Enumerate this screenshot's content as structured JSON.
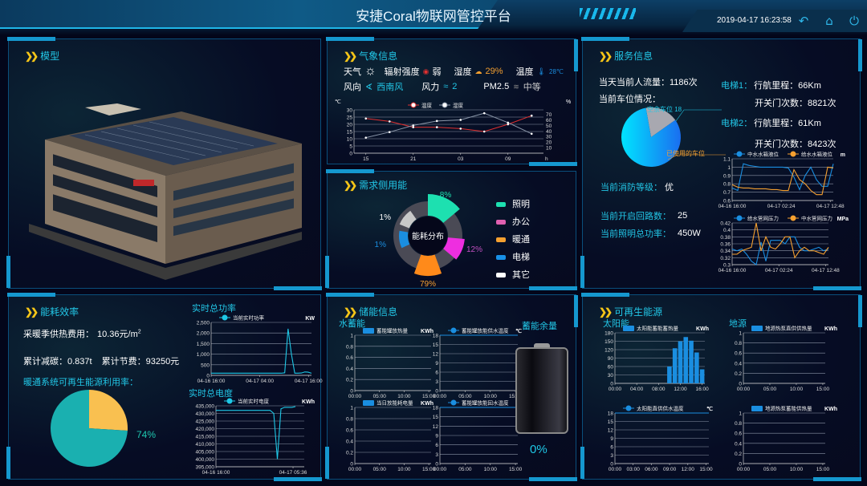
{
  "header": {
    "title": "安捷Coral物联网管控平台",
    "datetime": "2019-04-17 16:23:58",
    "icons": [
      "back-icon",
      "home-icon",
      "power-icon"
    ]
  },
  "model": {
    "title": "模型"
  },
  "weather": {
    "title": "气象信息",
    "weather_label": "天气",
    "weather_icon": "sun-icon",
    "radiation_label": "辐射强度",
    "radiation_value": "弱",
    "humidity_label": "湿度",
    "humidity_value": "29%",
    "temperature_label": "温度",
    "temperature_value": "28℃",
    "wind_dir_label": "风向",
    "wind_dir_value": "西南风",
    "wind_force_label": "风力",
    "wind_force_value": "2",
    "pm25_label": "PM2.5",
    "pm25_value": "中等"
  },
  "demand": {
    "title": "需求侧用能",
    "center_label": "能耗分布",
    "segments": [
      {
        "label": "照明",
        "percent": "8%",
        "color": "#1de0b0"
      },
      {
        "label": "办公",
        "percent": "12%",
        "color": "#ee2ee0"
      },
      {
        "label": "暖通",
        "percent": "79%",
        "color": "#ff8a1a"
      },
      {
        "label": "电梯",
        "percent": "1%",
        "color": "#1a8ee0"
      },
      {
        "label": "其它",
        "percent": "1%",
        "color": "#c8c8c8"
      }
    ],
    "legend_colors": [
      "#1de0b0",
      "#e060b0",
      "#f5a030",
      "#1890e8",
      "#ffffff"
    ]
  },
  "service": {
    "title": "服务信息",
    "traffic": "当天当前人流量：1186次",
    "parking_label": "当前车位情况：",
    "parking": {
      "free_label": "空余车位 18",
      "used_label": "已使用的车位",
      "free_fraction": 0.18
    },
    "elevator1_label": "电梯1：",
    "elevator1_mileage": "行航里程：66Km",
    "elevator1_doors": "开关门次数：8821次",
    "elevator2_label": "电梯2：",
    "elevator2_mileage": "行航里程：61Km",
    "elevator2_doors": "开关门次数：8423次",
    "fire_label": "当前消防等级：",
    "fire_value": "优",
    "circuits_label": "当前开启回路数：",
    "circuits_value": "25",
    "lighting_label": "当前照明总功率：",
    "lighting_value": "450W"
  },
  "efficiency": {
    "title": "能耗效率",
    "heating_cost": "采暖季供热费用：",
    "heating_cost_value": "10.36元/m",
    "heating_cost_sup": "2",
    "carbon": "累计减碳：0.837t",
    "saving": "累计节费：93250元",
    "renewable_label": "暖通系统可再生能源利用率：",
    "renewable_percent": "74%",
    "renewable_fraction": 0.74,
    "power_title": "实时总功率",
    "energy_title": "实时总电度"
  },
  "storage": {
    "title": "储能信息",
    "water_label": "水蓄能",
    "remaining_label": "蓄能余量",
    "remaining_value": "0%",
    "remaining_fraction": 0
  },
  "renewable": {
    "title": "可再生能源",
    "solar_label": "太阳能",
    "ground_label": "地源"
  },
  "chart_data": [
    {
      "id": "weather",
      "type": "line",
      "unit_left": "℃",
      "unit_right": "%",
      "xunit": "h",
      "ymin": 0,
      "ymax": 30,
      "yticks": [
        0,
        5,
        10,
        15,
        20,
        25,
        30
      ],
      "ymin2": 0,
      "ymax2": 78,
      "yticks2": [
        10,
        20,
        30,
        40,
        50,
        60,
        70
      ],
      "xticks": [
        "15",
        "21",
        "03",
        "09"
      ],
      "series": [
        {
          "name": "温度",
          "color": "#e03030",
          "values": [
            24,
            22,
            18,
            18,
            17,
            15,
            20,
            26
          ]
        },
        {
          "name": "湿度",
          "color": "#8a96a8",
          "axis": "right",
          "values": [
            28,
            38,
            50,
            58,
            60,
            72,
            55,
            35
          ]
        }
      ]
    },
    {
      "id": "water-level",
      "type": "line",
      "unit": "m",
      "ymin": 0.6,
      "ymax": 1.1,
      "yticks": [
        0.6,
        0.7,
        0.8,
        0.9,
        1,
        1.1
      ],
      "xticks": [
        "04-16 16:00",
        "04-17 02:24",
        "04-17 12:48"
      ],
      "series": [
        {
          "name": "中水水箱液位",
          "color": "#1a8ee0",
          "values": [
            0.75,
            0.72,
            1.04,
            1.02,
            1.01,
            1.0,
            1.0,
            1.0,
            1.0,
            1.0,
            0.99,
            0.88,
            0.73,
            0.9,
            1.0,
            0.85,
            0.77,
            0.77,
            1.04
          ]
        },
        {
          "name": "给水水箱液位",
          "color": "#f5a030",
          "values": [
            0.79,
            0.76,
            0.75,
            0.75,
            0.74,
            0.74,
            0.74,
            0.73,
            0.73,
            0.72,
            0.72,
            0.97,
            0.85,
            0.8,
            0.72,
            0.67,
            0.67,
            1.0,
            0.99
          ]
        }
      ]
    },
    {
      "id": "pressure",
      "type": "line",
      "unit": "MPa",
      "ymin": 0.3,
      "ymax": 0.42,
      "yticks": [
        0.3,
        0.32,
        0.34,
        0.36,
        0.38,
        0.4,
        0.42
      ],
      "xticks": [
        "04-16 16:00",
        "04-17 02:24",
        "04-17 12:48"
      ],
      "series": [
        {
          "name": "给水管网压力",
          "color": "#1a8ee0",
          "values": [
            0.345,
            0.34,
            0.345,
            0.33,
            0.31,
            0.3,
            0.365,
            0.31,
            0.37,
            0.37,
            0.37,
            0.36,
            0.38,
            0.38,
            0.35,
            0.34,
            0.34,
            0.345,
            0.35,
            0.34,
            0.345
          ]
        },
        {
          "name": "中水管网压力",
          "color": "#f5a030",
          "values": [
            0.33,
            0.33,
            0.34,
            0.345,
            0.35,
            0.42,
            0.34,
            0.38,
            0.35,
            0.345,
            0.36,
            0.38,
            0.38,
            0.32,
            0.34,
            0.35,
            0.34,
            0.34,
            0.335,
            0.33,
            0.35
          ]
        }
      ]
    },
    {
      "id": "power",
      "type": "line",
      "unit": "KW",
      "ymin": 0,
      "ymax": 2500,
      "yticks": [
        0,
        500,
        1000,
        1500,
        2000,
        2500
      ],
      "ytickLabels": [
        "0",
        "500",
        "1,000",
        "1,500",
        "2,000",
        "2,500"
      ],
      "xticks": [
        "04-16 16:00",
        "04-17 04:00",
        "04-17 16:00"
      ],
      "series": [
        {
          "name": "当前实时功率",
          "color": "#1ec8e6",
          "values": [
            100,
            100,
            100,
            100,
            100,
            100,
            100,
            100,
            100,
            100,
            100,
            100,
            100,
            100,
            100,
            100,
            100,
            100,
            100,
            100,
            100,
            100,
            120,
            2200,
            1000,
            100,
            100,
            110,
            160,
            150,
            100
          ]
        }
      ]
    },
    {
      "id": "energy",
      "type": "line",
      "unit": "KWh",
      "ymin": 395000,
      "ymax": 435000,
      "yticks": [
        395000,
        400000,
        405000,
        410000,
        415000,
        420000,
        425000,
        430000,
        435000
      ],
      "ytickLabels": [
        "395,000",
        "400,000",
        "405,000",
        "410,000",
        "415,000",
        "420,000",
        "425,000",
        "430,000",
        "435,000"
      ],
      "xticks": [
        "04-16 16:00",
        "04-17 05:36"
      ],
      "xspan": 0.9,
      "series": [
        {
          "name": "当前实时电度",
          "color": "#1ec8e6",
          "values": [
            432000,
            432000,
            432000,
            432000,
            432000,
            432000,
            432000,
            432000,
            432000,
            432000,
            432000,
            432000,
            432000,
            432000,
            432000,
            432000,
            430000,
            400000,
            433000,
            434000,
            434000,
            434000,
            434500
          ]
        }
      ]
    },
    {
      "id": "tank-heat",
      "type": "bar",
      "unit": "KWh",
      "ymin": 0,
      "ymax": 1,
      "yticks": [
        0,
        0.2,
        0.4,
        0.6,
        0.8,
        1
      ],
      "xticks": [
        "00:00",
        "05:00",
        "10:00",
        "15:00"
      ],
      "series": [
        {
          "name": "蓄能罐放热量",
          "color": "#1a8ee0",
          "values": []
        }
      ]
    },
    {
      "id": "tank-supply-temp",
      "type": "line",
      "unit": "℃",
      "ymin": 0,
      "ymax": 18,
      "yticks": [
        0,
        3,
        6,
        9,
        12,
        15,
        18
      ],
      "xticks": [
        "00:00",
        "05:00",
        "10:00",
        "15:00"
      ],
      "series": [
        {
          "name": "蓄能罐放能供水温度",
          "color": "#1a8ee0",
          "values": [
            18,
            18
          ]
        }
      ]
    },
    {
      "id": "daily-power",
      "type": "bar",
      "unit": "KWh",
      "ymin": 0,
      "ymax": 1,
      "yticks": [
        0,
        0.2,
        0.4,
        0.6,
        0.8,
        1
      ],
      "xticks": [
        "00:00",
        "05:00",
        "10:00",
        "15:00"
      ],
      "series": [
        {
          "name": "当日放能耗电量",
          "color": "#1a8ee0",
          "values": []
        }
      ]
    },
    {
      "id": "tank-return-temp",
      "type": "line",
      "unit": "℃",
      "ymin": 0,
      "ymax": 18,
      "yticks": [
        0,
        3,
        6,
        9,
        12,
        15,
        18
      ],
      "xticks": [
        "00:00",
        "05:00",
        "10:00",
        "15:00"
      ],
      "series": [
        {
          "name": "蓄能罐放能回水温度",
          "color": "#1a8ee0",
          "values": [
            18,
            18
          ]
        }
      ]
    },
    {
      "id": "solar-heat",
      "type": "bar",
      "unit": "KWh",
      "ymin": 0,
      "ymax": 180,
      "yticks": [
        0,
        30,
        60,
        90,
        120,
        150,
        180
      ],
      "xmin": 0,
      "xmax": 16,
      "xticks": [
        "00:00",
        "04:00",
        "08:00",
        "12:00",
        "16:00"
      ],
      "series": [
        {
          "name": "太阳能蓄能蓄热量",
          "color": "#1a8ee0",
          "x": [
            10,
            11,
            12,
            13,
            14,
            15,
            16
          ],
          "values": [
            60,
            125,
            150,
            165,
            152,
            110,
            50
          ]
        }
      ]
    },
    {
      "id": "ground-direct",
      "type": "bar",
      "unit": "KWh",
      "ymin": 0,
      "ymax": 1,
      "yticks": [
        0,
        0.2,
        0.4,
        0.6,
        0.8,
        1
      ],
      "xticks": [
        "00:00",
        "05:00",
        "10:00",
        "15:00"
      ],
      "series": [
        {
          "name": "地源热泵直供供热量",
          "color": "#1a8ee0",
          "values": []
        }
      ]
    },
    {
      "id": "solar-temp",
      "type": "line",
      "unit": "℃",
      "ymin": 0,
      "ymax": 18,
      "yticks": [
        0,
        3,
        6,
        9,
        12,
        15,
        18
      ],
      "xticks": [
        "00:00",
        "03:00",
        "06:00",
        "09:00",
        "12:00",
        "15:00"
      ],
      "series": [
        {
          "name": "太阳能直供供水温度",
          "color": "#1a8ee0",
          "values": [
            18,
            18
          ]
        }
      ]
    },
    {
      "id": "ground-storage",
      "type": "bar",
      "unit": "KWh",
      "ymin": 0,
      "ymax": 1,
      "yticks": [
        0,
        0.2,
        0.4,
        0.6,
        0.8,
        1
      ],
      "xticks": [
        "00:00",
        "05:00",
        "10:00",
        "15:00"
      ],
      "series": [
        {
          "name": "地源热泵蓄能供热量",
          "color": "#1a8ee0",
          "values": []
        }
      ]
    }
  ]
}
